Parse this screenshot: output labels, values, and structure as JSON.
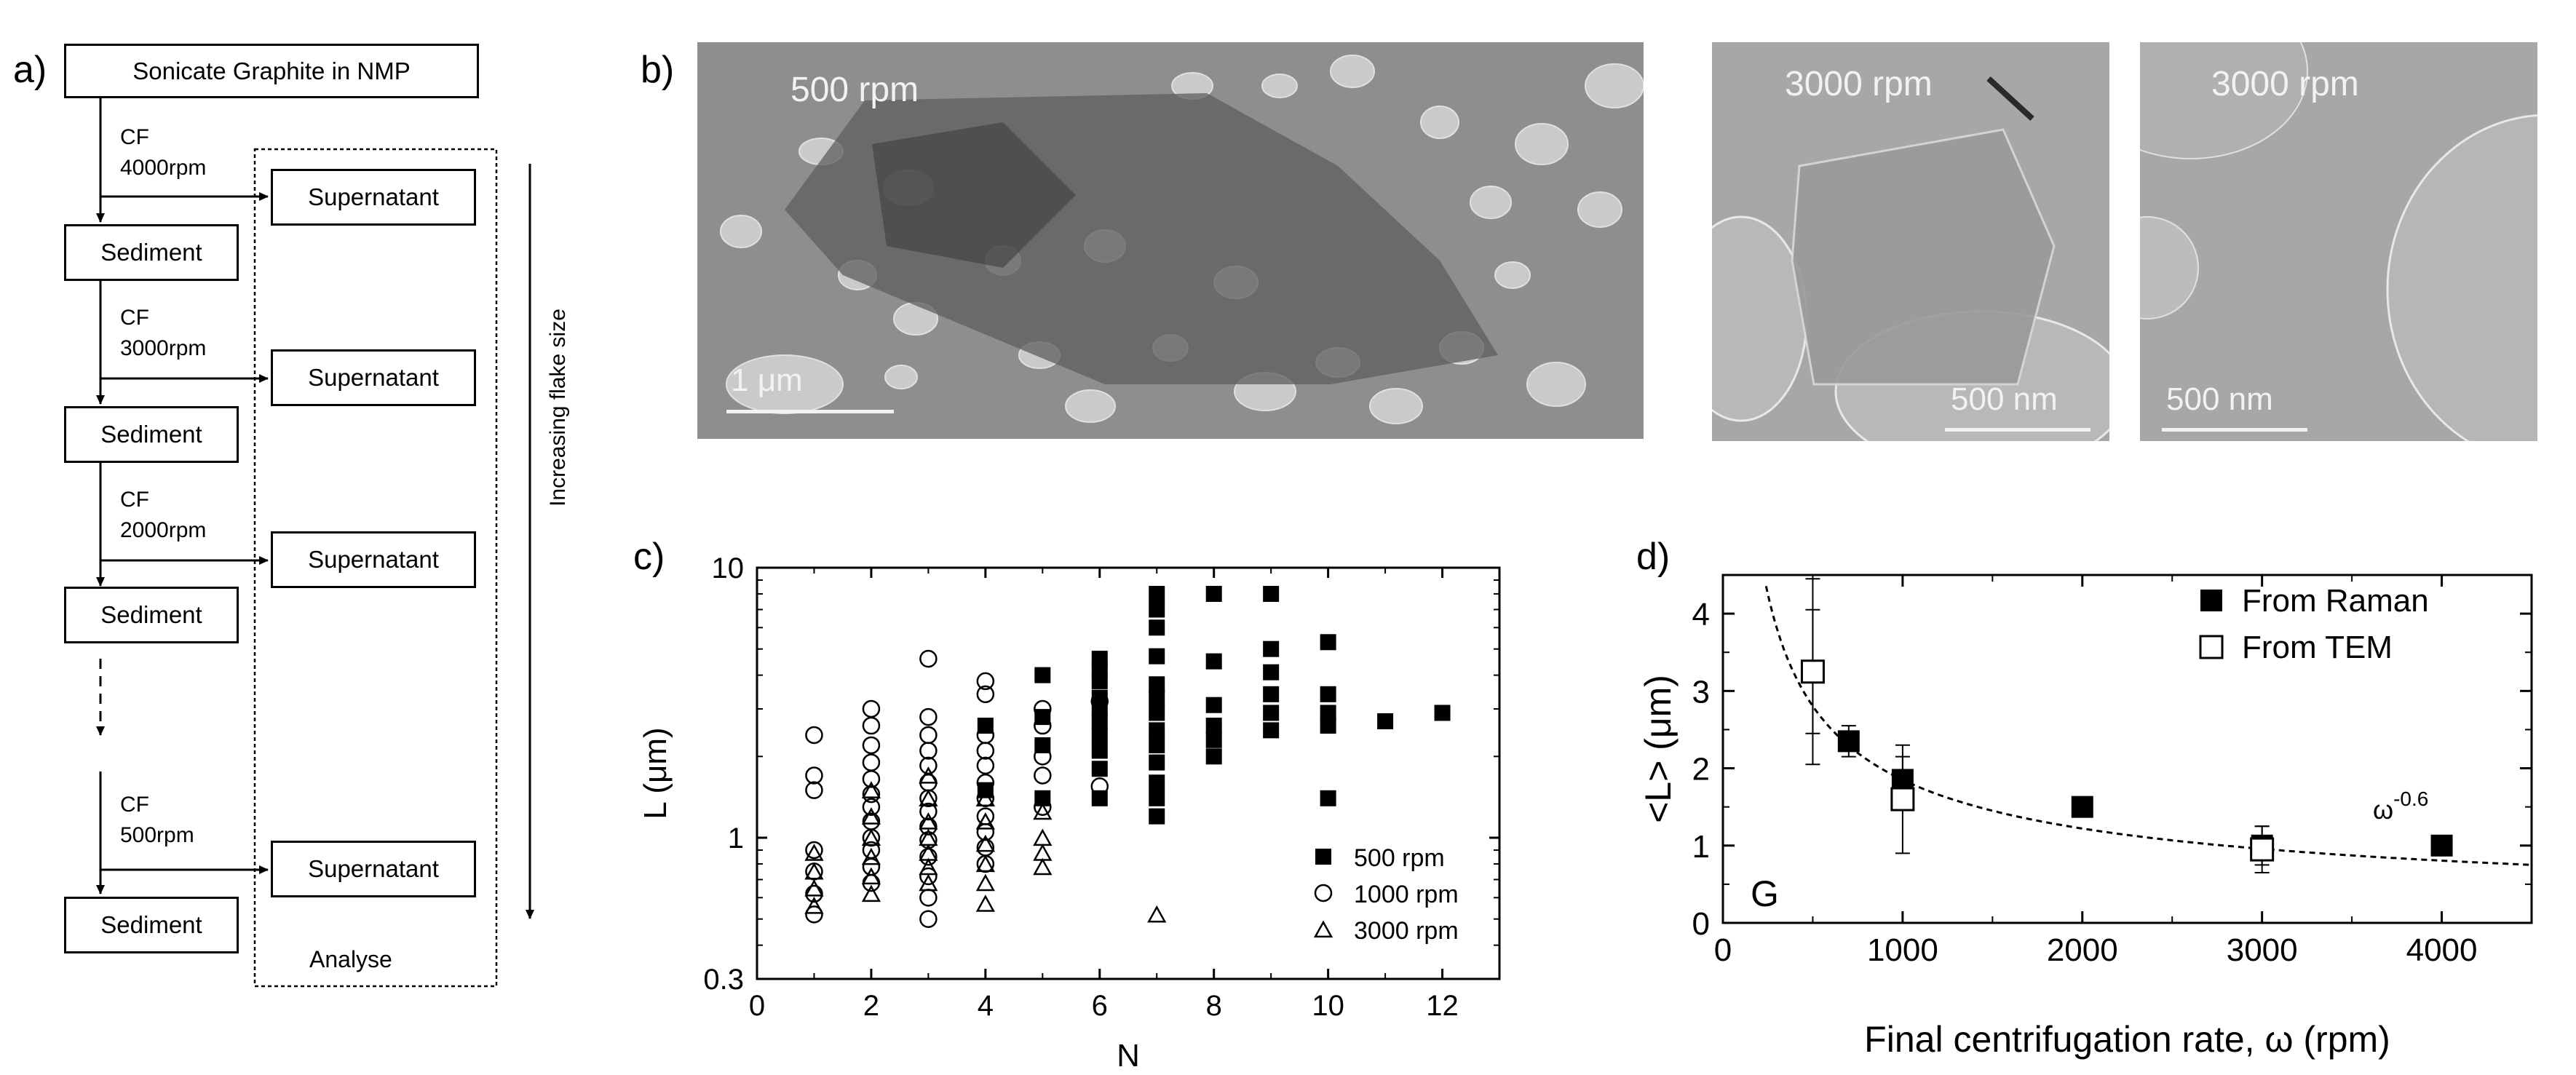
{
  "panels": {
    "a": "a)",
    "b": "b)",
    "c": "c)",
    "d": "d)"
  },
  "flow": {
    "start": "Sonicate Graphite in NMP",
    "steps": [
      {
        "cf": "CF",
        "rpm": "4000rpm",
        "supernatant": "Supernatant",
        "sediment": "Sediment"
      },
      {
        "cf": "CF",
        "rpm": "3000rpm",
        "supernatant": "Supernatant",
        "sediment": "Sediment"
      },
      {
        "cf": "CF",
        "rpm": "2000rpm",
        "supernatant": "Supernatant",
        "sediment": "Sediment"
      },
      {
        "cf": "CF",
        "rpm": "500rpm",
        "supernatant": "Supernatant",
        "sediment": "Sediment"
      }
    ],
    "analyse": "Analyse",
    "arrow_label": "Increasing flake size"
  },
  "tem": [
    {
      "label": "500 rpm",
      "scale": "1 μm"
    },
    {
      "label": "3000 rpm",
      "scale": "500 nm"
    },
    {
      "label": "3000 rpm",
      "scale": "500 nm"
    }
  ],
  "colors": {
    "tem_bg": "#8e8e8e",
    "hole": "#c9c9c9",
    "tem_bg2": "#a7a7a7"
  },
  "chart_data": [
    {
      "type": "scatter",
      "xlabel": "N",
      "ylabel": "L (μm)",
      "xlim": [
        0,
        13
      ],
      "ylim": [
        0.3,
        10
      ],
      "yscale": "log",
      "x_ticks": [
        "0",
        "2",
        "4",
        "6",
        "8",
        "10",
        "12"
      ],
      "y_ticks": [
        "0.3",
        "1",
        "10"
      ],
      "legend_position": "bottom-right",
      "series": [
        {
          "name": "500 rpm",
          "marker": "filled-square",
          "points": [
            [
              4,
              2.6
            ],
            [
              4,
              1.5
            ],
            [
              5,
              4.0
            ],
            [
              5,
              2.8
            ],
            [
              5,
              2.2
            ],
            [
              5,
              1.4
            ],
            [
              6,
              4.6
            ],
            [
              6,
              4.2
            ],
            [
              6,
              3.8
            ],
            [
              6,
              3.3
            ],
            [
              6,
              3.0
            ],
            [
              6,
              2.7
            ],
            [
              6,
              2.4
            ],
            [
              6,
              2.1
            ],
            [
              6,
              1.8
            ],
            [
              6,
              1.4
            ],
            [
              7,
              8.0
            ],
            [
              7,
              7.0
            ],
            [
              7,
              6.0
            ],
            [
              7,
              4.7
            ],
            [
              7,
              3.7
            ],
            [
              7,
              3.3
            ],
            [
              7,
              2.9
            ],
            [
              7,
              2.5
            ],
            [
              7,
              2.2
            ],
            [
              7,
              1.9
            ],
            [
              7,
              1.6
            ],
            [
              7,
              1.4
            ],
            [
              7,
              1.2
            ],
            [
              8,
              8.0
            ],
            [
              8,
              4.5
            ],
            [
              8,
              3.1
            ],
            [
              8,
              2.6
            ],
            [
              8,
              2.3
            ],
            [
              8,
              2.0
            ],
            [
              9,
              8.0
            ],
            [
              9,
              5.0
            ],
            [
              9,
              4.1
            ],
            [
              9,
              3.4
            ],
            [
              9,
              2.9
            ],
            [
              9,
              2.5
            ],
            [
              10,
              5.3
            ],
            [
              10,
              3.4
            ],
            [
              10,
              2.9
            ],
            [
              10,
              2.6
            ],
            [
              10,
              1.4
            ],
            [
              11,
              2.7
            ],
            [
              12,
              2.9
            ]
          ]
        },
        {
          "name": "1000 rpm",
          "marker": "open-circle",
          "points": [
            [
              1,
              2.4
            ],
            [
              1,
              1.7
            ],
            [
              1,
              1.5
            ],
            [
              1,
              0.9
            ],
            [
              1,
              0.75
            ],
            [
              1,
              0.62
            ],
            [
              1,
              0.52
            ],
            [
              2,
              3.0
            ],
            [
              2,
              2.6
            ],
            [
              2,
              2.2
            ],
            [
              2,
              1.9
            ],
            [
              2,
              1.65
            ],
            [
              2,
              1.45
            ],
            [
              2,
              1.3
            ],
            [
              2,
              1.15
            ],
            [
              2,
              1.0
            ],
            [
              2,
              0.9
            ],
            [
              2,
              0.78
            ],
            [
              2,
              0.68
            ],
            [
              3,
              4.6
            ],
            [
              3,
              2.8
            ],
            [
              3,
              2.4
            ],
            [
              3,
              2.1
            ],
            [
              3,
              1.85
            ],
            [
              3,
              1.6
            ],
            [
              3,
              1.4
            ],
            [
              3,
              1.25
            ],
            [
              3,
              1.1
            ],
            [
              3,
              0.98
            ],
            [
              3,
              0.85
            ],
            [
              3,
              0.72
            ],
            [
              3,
              0.6
            ],
            [
              3,
              0.5
            ],
            [
              4,
              3.8
            ],
            [
              4,
              3.4
            ],
            [
              4,
              2.4
            ],
            [
              4,
              2.1
            ],
            [
              4,
              1.85
            ],
            [
              4,
              1.6
            ],
            [
              4,
              1.4
            ],
            [
              4,
              1.2
            ],
            [
              4,
              1.05
            ],
            [
              4,
              0.92
            ],
            [
              4,
              0.8
            ],
            [
              5,
              3.0
            ],
            [
              5,
              2.6
            ],
            [
              5,
              2.0
            ],
            [
              5,
              1.7
            ],
            [
              5,
              1.3
            ],
            [
              6,
              3.2
            ],
            [
              6,
              1.55
            ]
          ]
        },
        {
          "name": "3000 rpm",
          "marker": "open-triangle",
          "points": [
            [
              1,
              0.88
            ],
            [
              1,
              0.75
            ],
            [
              1,
              0.65
            ],
            [
              1,
              0.56
            ],
            [
              2,
              1.5
            ],
            [
              2,
              1.2
            ],
            [
              2,
              1.0
            ],
            [
              2,
              0.85
            ],
            [
              2,
              0.72
            ],
            [
              2,
              0.62
            ],
            [
              3,
              1.7
            ],
            [
              3,
              1.4
            ],
            [
              3,
              1.15
            ],
            [
              3,
              1.0
            ],
            [
              3,
              0.88
            ],
            [
              3,
              0.78
            ],
            [
              3,
              0.68
            ],
            [
              4,
              1.4
            ],
            [
              4,
              1.15
            ],
            [
              4,
              0.95
            ],
            [
              4,
              0.8
            ],
            [
              4,
              0.68
            ],
            [
              4,
              0.57
            ],
            [
              5,
              1.25
            ],
            [
              5,
              1.0
            ],
            [
              5,
              0.88
            ],
            [
              5,
              0.78
            ],
            [
              7,
              0.52
            ]
          ]
        }
      ]
    },
    {
      "type": "scatter",
      "xlabel": "Final centrifugation rate, ω (rpm)",
      "ylabel": "<L> (μm)",
      "xlim": [
        0,
        4500
      ],
      "ylim": [
        0,
        4.5
      ],
      "x_ticks": [
        "0",
        "1000",
        "2000",
        "3000",
        "4000"
      ],
      "y_ticks": [
        "0",
        "1",
        "2",
        "3",
        "4"
      ],
      "legend_position": "top-right",
      "annotations": {
        "fit": "ω",
        "fit_exp": "-0.6",
        "corner": "G"
      },
      "fit": {
        "style": "dashed",
        "form": "power-law",
        "points": [
          [
            250,
            4.5
          ],
          [
            500,
            3.25
          ],
          [
            700,
            2.4
          ],
          [
            1000,
            1.85
          ],
          [
            2000,
            1.3
          ],
          [
            3000,
            1.0
          ],
          [
            4000,
            0.9
          ],
          [
            4500,
            0.85
          ]
        ]
      },
      "series": [
        {
          "name": "From Raman",
          "marker": "filled-square",
          "points": [
            {
              "x": 500,
              "y": 3.25,
              "err": 1.2
            },
            {
              "x": 700,
              "y": 2.35,
              "err": 0.2
            },
            {
              "x": 1000,
              "y": 1.85,
              "err": 0.3
            },
            {
              "x": 2000,
              "y": 1.5,
              "err": 0
            },
            {
              "x": 3000,
              "y": 1.0,
              "err": 0.25
            },
            {
              "x": 4000,
              "y": 1.0,
              "err": 0
            }
          ]
        },
        {
          "name": "From TEM",
          "marker": "open-square",
          "points": [
            {
              "x": 500,
              "y": 3.25,
              "err": 0.8
            },
            {
              "x": 1000,
              "y": 1.6,
              "err": 0.7
            },
            {
              "x": 3000,
              "y": 0.95,
              "err": 0.3
            }
          ]
        }
      ]
    }
  ]
}
